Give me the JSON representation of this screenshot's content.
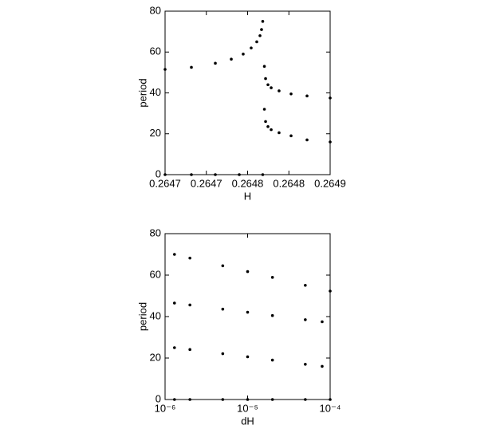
{
  "chart_data": [
    {
      "type": "scatter",
      "xlabel": "H",
      "ylabel": "period",
      "xlim": [
        0.26469,
        0.26487
      ],
      "ylim": [
        0,
        80
      ],
      "xticks": [
        {
          "value": 0.26469,
          "label": "0.2647"
        },
        {
          "value": 0.264735,
          "label": "0.2647"
        },
        {
          "value": 0.26478,
          "label": "0.2648"
        },
        {
          "value": 0.264825,
          "label": "0.2648"
        },
        {
          "value": 0.26487,
          "label": "0.2649"
        }
      ],
      "yticks": [
        0,
        20,
        40,
        60,
        80
      ],
      "color": "#000000",
      "series": [
        {
          "x": [
            0.26469,
            0.2647187,
            0.2647448,
            0.2647622,
            0.2647752,
            0.2647839,
            0.26479,
            0.2647935,
            0.2647952,
            0.2647965
          ],
          "values": [
            51.5,
            52.5,
            54.5,
            56.5,
            59,
            62,
            65,
            68,
            71,
            75
          ]
        },
        {
          "x": [
            0.26469,
            0.2647187,
            0.2647448,
            0.2647709,
            0.2647965
          ],
          "values": [
            0,
            0,
            0,
            0,
            0
          ]
        },
        {
          "x": [
            0.2647983,
            0.2647996,
            0.2648022,
            0.2648057,
            0.2648143,
            0.2648274,
            0.2648448,
            0.26487
          ],
          "values": [
            53,
            47,
            44,
            42.5,
            41,
            39.5,
            38.5,
            37.5
          ]
        },
        {
          "x": [
            0.2647983,
            0.2647996,
            0.2648022,
            0.2648057,
            0.2648143,
            0.2648274,
            0.2648448,
            0.26487
          ],
          "values": [
            32,
            26,
            23.5,
            22,
            20.5,
            19,
            17,
            16
          ]
        }
      ]
    },
    {
      "type": "scatter",
      "xlabel": "dH",
      "ylabel": "period",
      "xscale": "log",
      "xlim": [
        1e-06,
        0.0001
      ],
      "ylim": [
        0,
        80
      ],
      "xticks": [
        {
          "value": 1e-06,
          "label": "10⁻⁶"
        },
        {
          "value": 1e-05,
          "label": "10⁻⁵"
        },
        {
          "value": 0.0001,
          "label": "10⁻⁴"
        }
      ],
      "yticks": [
        0,
        20,
        40,
        60,
        80
      ],
      "color": "#000000",
      "series": [
        {
          "x": [
            1.3e-06,
            2e-06,
            5e-06,
            1e-05,
            2e-05,
            5e-05,
            0.0001
          ],
          "values": [
            70,
            68.2,
            64.5,
            61.7,
            58.9,
            55.1,
            52.3
          ]
        },
        {
          "x": [
            1.3e-06,
            2e-06,
            5e-06,
            1e-05,
            2e-05,
            5e-05,
            8e-05
          ],
          "values": [
            46.5,
            45.6,
            43.6,
            42.1,
            40.5,
            38.5,
            37.5
          ]
        },
        {
          "x": [
            1.3e-06,
            2e-06,
            5e-06,
            1e-05,
            2e-05,
            5e-05,
            8e-05
          ],
          "values": [
            25,
            24.1,
            22.1,
            20.6,
            19,
            17,
            16
          ]
        },
        {
          "x": [
            1.3e-06,
            2e-06,
            5e-06,
            1e-05,
            2e-05,
            5e-05,
            0.0001
          ],
          "values": [
            0,
            0,
            0,
            0,
            0,
            0,
            0
          ]
        }
      ]
    }
  ]
}
